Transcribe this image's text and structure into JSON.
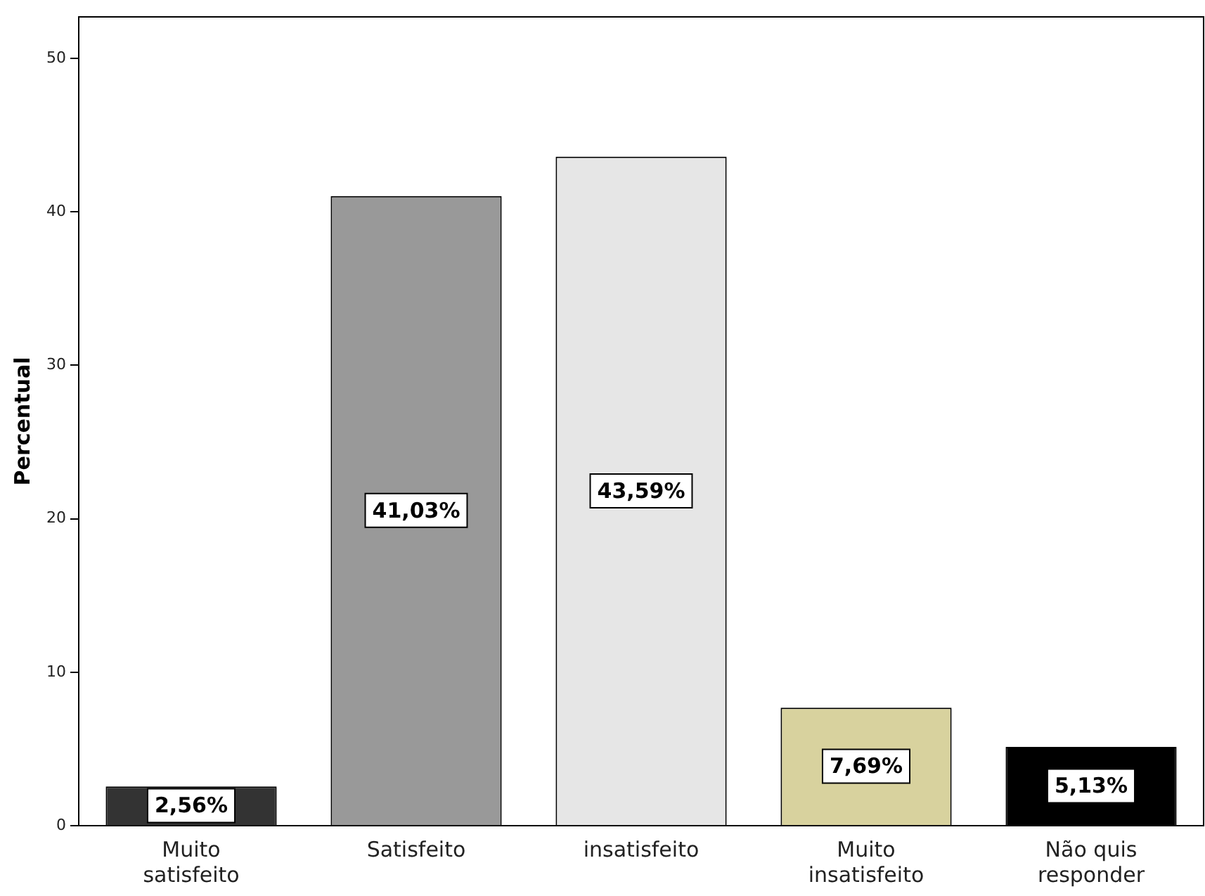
{
  "chart_data": {
    "type": "bar",
    "ylabel": "Percentual",
    "categories": [
      "Muito\nsatisfeito",
      "Satisfeito",
      "insatisfeito",
      "Muito\ninsatisfeito",
      "Não quis\nresponder"
    ],
    "values": [
      2.56,
      41.03,
      43.59,
      7.69,
      5.13
    ],
    "colors": [
      "#333333",
      "#999999",
      "#e6e6e6",
      "#d8d29e",
      "#000000"
    ],
    "value_labels": [
      "2,56%",
      "41,03%",
      "43,59%",
      "7,69%",
      "5,13%"
    ],
    "ylim": [
      0,
      52.7
    ],
    "yticks": [
      0,
      10,
      20,
      30,
      40,
      50
    ],
    "grid": false,
    "legend": false
  }
}
